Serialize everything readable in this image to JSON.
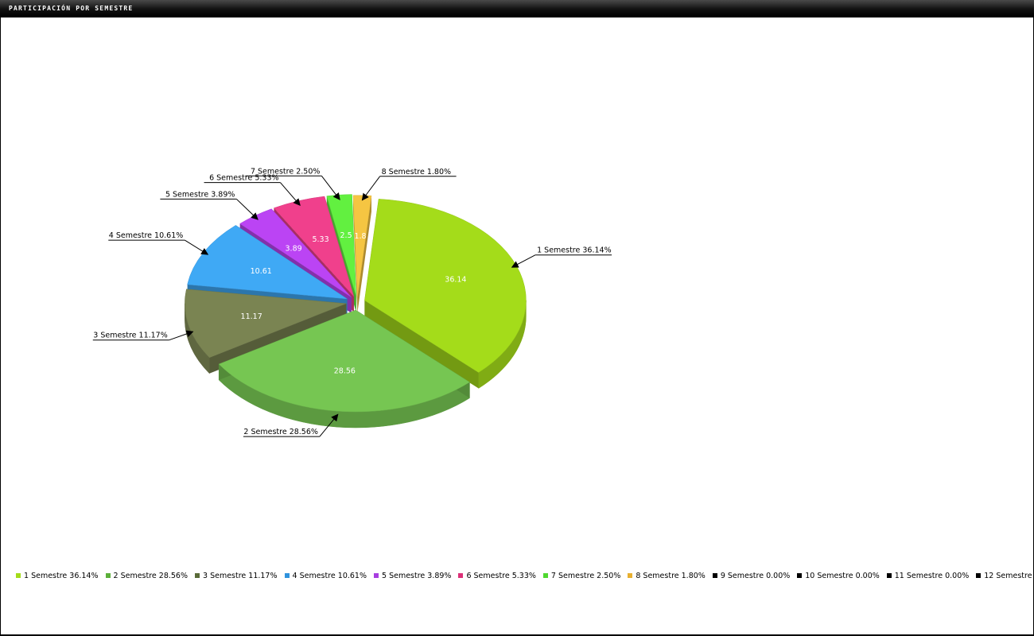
{
  "window": {
    "title": "PARTICIPACIÓN POR SEMESTRE"
  },
  "chart_data": {
    "type": "pie",
    "title": "",
    "exploded": true,
    "three_d": true,
    "slices": [
      {
        "label": "1 Semestre",
        "value": 36.14,
        "value_label": "36.14",
        "callout": "1 Semestre 36.14%",
        "color": "#a4dc1a"
      },
      {
        "label": "2 Semestre",
        "value": 28.56,
        "value_label": "28.56",
        "callout": "2 Semestre 28.56%",
        "color": "#76c652"
      },
      {
        "label": "3 Semestre",
        "value": 11.17,
        "value_label": "11.17",
        "callout": "3 Semestre 11.17%",
        "color": "#7a8452"
      },
      {
        "label": "4 Semestre",
        "value": 10.61,
        "value_label": "10.61",
        "callout": "4 Semestre 10.61%",
        "color": "#3fa9f5"
      },
      {
        "label": "5 Semestre",
        "value": 3.89,
        "value_label": "3.89",
        "callout": "5 Semestre 3.89%",
        "color": "#bb44f4"
      },
      {
        "label": "6 Semestre",
        "value": 5.33,
        "value_label": "5.33",
        "callout": "6 Semestre 5.33%",
        "color": "#f0408c"
      },
      {
        "label": "7 Semestre",
        "value": 2.5,
        "value_label": "2.5",
        "callout": "7 Semestre 2.50%",
        "color": "#62f040"
      },
      {
        "label": "8 Semestre",
        "value": 1.8,
        "value_label": "1.8",
        "callout": "8 Semestre 1.80%",
        "color": "#f5c542"
      }
    ],
    "legend": [
      {
        "label": "1 Semestre 36.14%",
        "color": "#a4dc1a"
      },
      {
        "label": "2 Semestre 28.56%",
        "color": "#5cb03a"
      },
      {
        "label": "3 Semestre 11.17%",
        "color": "#5a6b38"
      },
      {
        "label": "4 Semestre 10.61%",
        "color": "#2f93dd"
      },
      {
        "label": "5 Semestre 3.89%",
        "color": "#a83ee0"
      },
      {
        "label": "6 Semestre 5.33%",
        "color": "#dc3078"
      },
      {
        "label": "7 Semestre 2.50%",
        "color": "#4fd830"
      },
      {
        "label": "8 Semestre 1.80%",
        "color": "#e8b030"
      },
      {
        "label": "9 Semestre 0.00%",
        "color": "#000000"
      },
      {
        "label": "10 Semestre 0.00%",
        "color": "#000000"
      },
      {
        "label": "11 Semestre 0.00%",
        "color": "#000000"
      },
      {
        "label": "12 Semestre",
        "color": "#000000"
      }
    ],
    "legend_position": "bottom"
  }
}
